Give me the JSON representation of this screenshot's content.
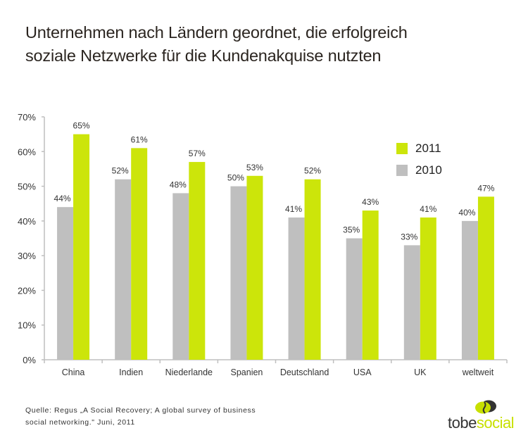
{
  "title_lines": [
    "Unternehmen nach Ländern geordnet, die erfolgreich",
    "soziale Netzwerke für die Kundenakquise nutzten"
  ],
  "source": {
    "line1": "Quelle: Regus „A Social Recovery; A global survey of business",
    "line2": "social networking.\" Juni, 2011"
  },
  "logo": {
    "part1": "tobe",
    "part2": "social",
    "icon": "speech-bubbles-icon"
  },
  "colors": {
    "series_2010": "#bfbfbf",
    "series_2011": "#cce50a",
    "axis": "#bfbfbf",
    "text": "#333333"
  },
  "chart_data": {
    "type": "bar",
    "title": "Unternehmen nach Ländern geordnet, die erfolgreich soziale Netzwerke für die Kundenakquise nutzten",
    "xlabel": "",
    "ylabel": "",
    "ylim": [
      0,
      70
    ],
    "yticks": [
      0,
      10,
      20,
      30,
      40,
      50,
      60,
      70
    ],
    "ytick_labels": [
      "0%",
      "10%",
      "20%",
      "30%",
      "40%",
      "50%",
      "60%",
      "70%"
    ],
    "grid": false,
    "legend": "top-right",
    "categories": [
      "China",
      "Indien",
      "Niederlande",
      "Spanien",
      "Deutschland",
      "USA",
      "UK",
      "weltweit"
    ],
    "series": [
      {
        "name": "2010",
        "color": "#bfbfbf",
        "values": [
          44,
          52,
          48,
          50,
          41,
          35,
          33,
          40
        ],
        "labels": [
          "44%",
          "52%",
          "48%",
          "50%",
          "41%",
          "35%",
          "33%",
          "40%"
        ]
      },
      {
        "name": "2011",
        "color": "#cce50a",
        "values": [
          65,
          61,
          57,
          53,
          52,
          43,
          41,
          47
        ],
        "labels": [
          "65%",
          "61%",
          "57%",
          "53%",
          "52%",
          "43%",
          "41%",
          "47%"
        ]
      }
    ],
    "legend_order": [
      "2011",
      "2010"
    ]
  }
}
